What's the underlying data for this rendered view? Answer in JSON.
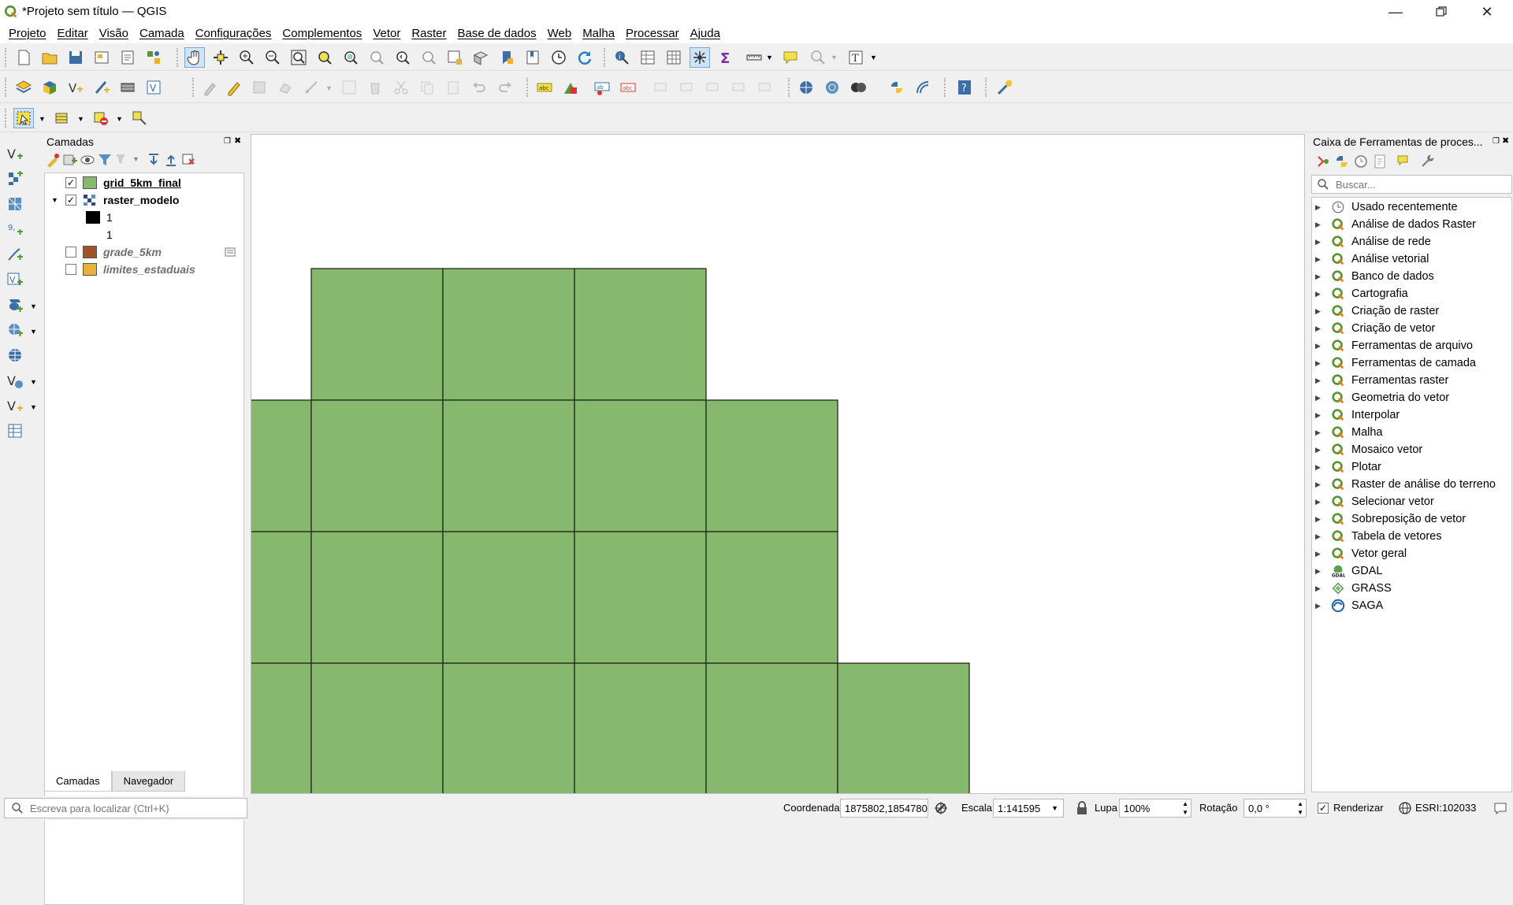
{
  "window": {
    "title": "*Projeto sem título — QGIS",
    "controls": [
      "minimize-icon",
      "restore-icon",
      "close-icon"
    ]
  },
  "menu": [
    "Projeto",
    "Editar",
    "Visão",
    "Camada",
    "Configurações",
    "Complementos",
    "Vetor",
    "Raster",
    "Base de dados",
    "Web",
    "Malha",
    "Processar",
    "Ajuda"
  ],
  "layers_panel": {
    "title": "Camadas",
    "layers": [
      {
        "name": "grid_5km_final",
        "checked": true,
        "color": "#86b96d",
        "style": "bold-underline"
      },
      {
        "name": "raster_modelo",
        "checked": true,
        "expanded": true,
        "style": "bold"
      },
      {
        "name": "1",
        "legend_color": "#000000"
      },
      {
        "name": "1",
        "legend_color": "#ffffff"
      },
      {
        "name": "grade_5km",
        "checked": false,
        "color": "#a0522d",
        "style": "italic"
      },
      {
        "name": "limites_estaduais",
        "checked": false,
        "color": "#e8b23a",
        "style": "italic"
      }
    ],
    "tabs": [
      "Camadas",
      "Navegador"
    ]
  },
  "toolbox": {
    "title": "Caixa de Ferramentas de proces...",
    "search_placeholder": "Buscar...",
    "items": [
      {
        "label": "Usado recentemente",
        "icon": "clock-icon"
      },
      {
        "label": "Análise de dados Raster",
        "icon": "qgis-icon"
      },
      {
        "label": "Análise de rede",
        "icon": "qgis-icon"
      },
      {
        "label": "Análise vetorial",
        "icon": "qgis-icon"
      },
      {
        "label": "Banco de dados",
        "icon": "qgis-icon"
      },
      {
        "label": "Cartografia",
        "icon": "qgis-icon"
      },
      {
        "label": "Criação de raster",
        "icon": "qgis-icon"
      },
      {
        "label": "Criação de vetor",
        "icon": "qgis-icon"
      },
      {
        "label": "Ferramentas de arquivo",
        "icon": "qgis-icon"
      },
      {
        "label": "Ferramentas de camada",
        "icon": "qgis-icon"
      },
      {
        "label": "Ferramentas raster",
        "icon": "qgis-icon"
      },
      {
        "label": "Geometria do vetor",
        "icon": "qgis-icon"
      },
      {
        "label": "Interpolar",
        "icon": "qgis-icon"
      },
      {
        "label": "Malha",
        "icon": "qgis-icon"
      },
      {
        "label": "Mosaico vetor",
        "icon": "qgis-icon"
      },
      {
        "label": "Plotar",
        "icon": "qgis-icon"
      },
      {
        "label": "Raster de análise do terreno",
        "icon": "qgis-icon"
      },
      {
        "label": "Selecionar vetor",
        "icon": "qgis-icon"
      },
      {
        "label": "Sobreposição de vetor",
        "icon": "qgis-icon"
      },
      {
        "label": "Tabela de vetores",
        "icon": "qgis-icon"
      },
      {
        "label": "Vetor geral",
        "icon": "qgis-icon"
      },
      {
        "label": "GDAL",
        "icon": "gdal-icon"
      },
      {
        "label": "GRASS",
        "icon": "grass-icon"
      },
      {
        "label": "SAGA",
        "icon": "saga-icon"
      }
    ]
  },
  "statusbar": {
    "locate_placeholder": "Escreva para localizar (Ctrl+K)",
    "coord_label": "Coordenada",
    "coord_value": "1875802,1854780",
    "scale_label": "Escala",
    "scale_value": "1:141595",
    "magnifier_label": "Lupa",
    "magnifier_value": "100%",
    "rotation_label": "Rotação",
    "rotation_value": "0,0 °",
    "render_label": "Renderizar",
    "render_checked": true,
    "crs": "ESRI:102033"
  },
  "map": {
    "fill_color": "#86b96d",
    "stroke_color": "#1f2a1a"
  }
}
